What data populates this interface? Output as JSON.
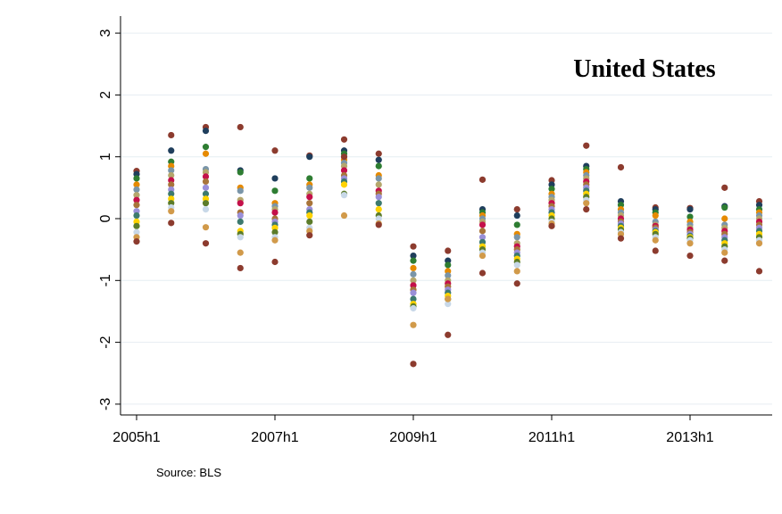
{
  "chart_data": {
    "type": "scatter",
    "title": "United States",
    "xlabel": "",
    "ylabel": "",
    "note": "Source: BLS",
    "x_ticks": [
      "2005h1",
      "2007h1",
      "2009h1",
      "2011h1",
      "2013h1"
    ],
    "y_ticks": [
      "-3",
      "-2",
      "-1",
      "0",
      "1",
      "2",
      "3"
    ],
    "ylim": [
      -3.2,
      3.2
    ],
    "x_period_labels": [
      "2005h1",
      "2005h2",
      "2006h1",
      "2006h2",
      "2007h1",
      "2007h2",
      "2008h1",
      "2008h2",
      "2009h1",
      "2009h2",
      "2010h1",
      "2010h2",
      "2011h1",
      "2011h2",
      "2012h1",
      "2012h2",
      "2013h1",
      "2013h2",
      "2014h1"
    ],
    "grid": true,
    "legend": "none",
    "palette": [
      "#8c3b2e",
      "#1f3e5c",
      "#2e7d32",
      "#e68a00",
      "#7a95a8",
      "#b5a76c",
      "#c4104a",
      "#a8743a",
      "#9a8fd8",
      "#3d7a6e",
      "#ffd300",
      "#5c7c2a",
      "#c8d8e8",
      "#d19a4a"
    ],
    "series_by_period": [
      [
        0.77,
        0.72,
        0.65,
        0.55,
        0.47,
        0.38,
        0.3,
        0.22,
        0.12,
        0.05,
        -0.05,
        -0.12,
        -0.22,
        -0.3,
        -0.37
      ],
      [
        1.35,
        1.1,
        0.92,
        0.85,
        0.78,
        0.7,
        0.62,
        0.55,
        0.47,
        0.4,
        0.32,
        0.25,
        0.18,
        0.12,
        -0.07
      ],
      [
        1.48,
        1.42,
        1.16,
        1.05,
        0.8,
        0.75,
        0.68,
        0.6,
        0.5,
        0.4,
        0.32,
        0.25,
        0.15,
        -0.14,
        -0.4
      ],
      [
        1.48,
        0.78,
        0.75,
        0.5,
        0.45,
        0.3,
        0.25,
        0.1,
        0.05,
        -0.05,
        -0.2,
        -0.25,
        -0.3,
        -0.55,
        -0.8
      ],
      [
        1.1,
        0.65,
        0.45,
        0.25,
        0.2,
        0.15,
        0.1,
        0.0,
        -0.05,
        -0.1,
        -0.15,
        -0.22,
        -0.3,
        -0.35,
        -0.7
      ],
      [
        1.02,
        1.0,
        0.65,
        0.55,
        0.5,
        0.4,
        0.35,
        0.25,
        0.15,
        0.1,
        0.05,
        -0.05,
        -0.15,
        -0.2,
        -0.27
      ],
      [
        1.28,
        1.1,
        1.05,
        0.95,
        0.9,
        0.85,
        0.78,
        0.7,
        0.65,
        0.6,
        0.55,
        0.4,
        0.38,
        0.05,
        1.0
      ],
      [
        1.05,
        0.95,
        0.85,
        0.7,
        0.65,
        0.55,
        0.45,
        0.4,
        0.35,
        0.25,
        0.15,
        0.05,
        0.0,
        -0.08,
        -0.1
      ],
      [
        -0.45,
        -0.6,
        -0.68,
        -0.8,
        -0.9,
        -1.0,
        -1.08,
        -1.15,
        -1.2,
        -1.3,
        -1.38,
        -1.42,
        -1.45,
        -1.72,
        -2.35
      ],
      [
        -0.52,
        -0.68,
        -0.75,
        -0.85,
        -0.92,
        -1.0,
        -1.05,
        -1.1,
        -1.15,
        -1.2,
        -1.25,
        -1.3,
        -1.38,
        -1.3,
        -1.88
      ],
      [
        0.63,
        0.15,
        0.1,
        0.05,
        0.0,
        -0.05,
        -0.1,
        -0.2,
        -0.3,
        -0.38,
        -0.45,
        -0.5,
        -0.55,
        -0.6,
        -0.88
      ],
      [
        0.15,
        0.05,
        -0.1,
        -0.25,
        -0.3,
        -0.4,
        -0.45,
        -0.5,
        -0.55,
        -0.6,
        -0.65,
        -0.7,
        -0.75,
        -0.85,
        -1.05
      ],
      [
        0.62,
        0.55,
        0.48,
        0.4,
        0.35,
        0.3,
        0.25,
        0.2,
        0.15,
        0.1,
        0.05,
        0.0,
        -0.05,
        -0.08,
        -0.12
      ],
      [
        1.18,
        0.85,
        0.8,
        0.75,
        0.7,
        0.65,
        0.6,
        0.55,
        0.5,
        0.45,
        0.4,
        0.35,
        0.3,
        0.25,
        0.15
      ],
      [
        0.83,
        0.28,
        0.22,
        0.15,
        0.1,
        0.05,
        0.0,
        -0.05,
        -0.08,
        -0.12,
        -0.15,
        -0.18,
        -0.22,
        -0.25,
        -0.32
      ],
      [
        0.18,
        0.15,
        0.1,
        0.05,
        -0.05,
        -0.1,
        -0.12,
        -0.15,
        -0.18,
        -0.2,
        -0.22,
        -0.25,
        -0.3,
        -0.35,
        -0.52
      ],
      [
        0.17,
        0.15,
        0.03,
        -0.05,
        -0.1,
        -0.15,
        -0.18,
        -0.22,
        -0.25,
        -0.28,
        -0.3,
        -0.32,
        -0.35,
        -0.4,
        -0.6
      ],
      [
        0.5,
        0.2,
        0.18,
        0.0,
        -0.1,
        -0.15,
        -0.2,
        -0.25,
        -0.3,
        -0.35,
        -0.4,
        -0.45,
        -0.5,
        -0.55,
        -0.68
      ],
      [
        0.28,
        0.22,
        0.15,
        0.1,
        0.05,
        0.0,
        -0.05,
        -0.1,
        -0.15,
        -0.2,
        -0.25,
        -0.3,
        -0.35,
        -0.4,
        -0.85
      ]
    ]
  }
}
